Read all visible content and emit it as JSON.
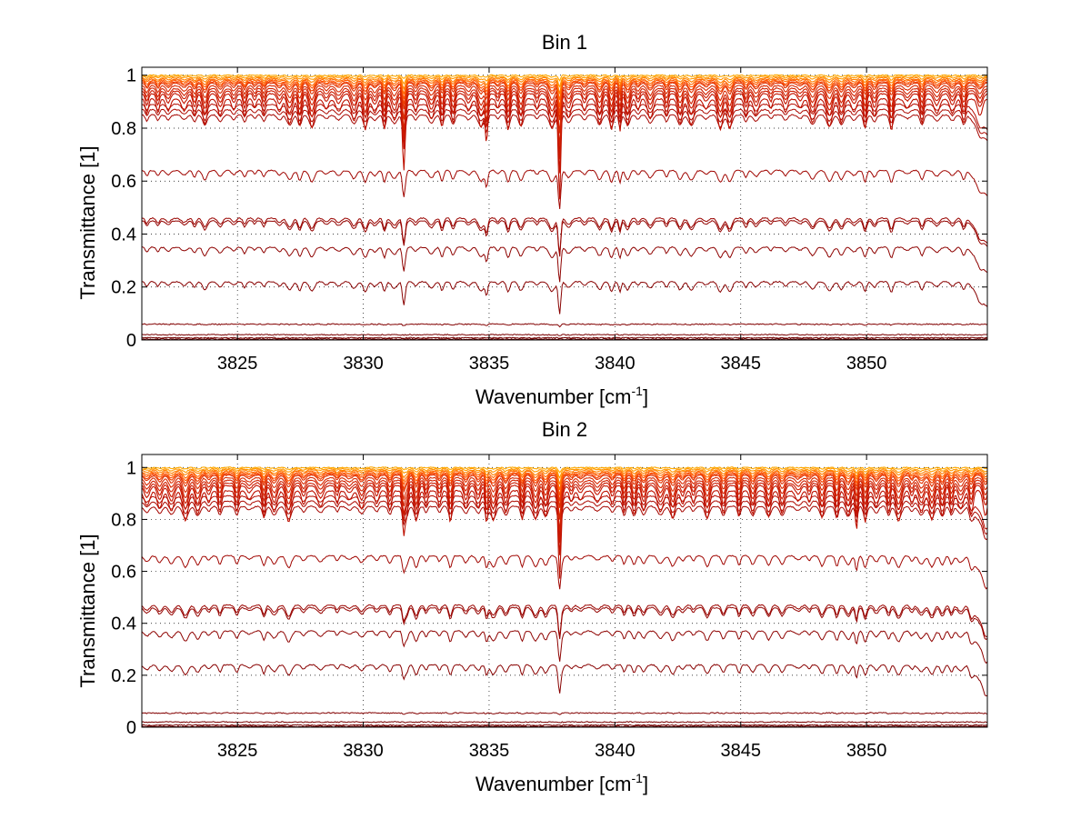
{
  "chart_data": [
    {
      "type": "line",
      "title": "Bin 1",
      "xlabel": "Wavenumber [cm",
      "xlabel_sup": "-1",
      "xlabel_end": "]",
      "ylabel": "Transmittance [1]",
      "xlim": [
        3821.2,
        3854.8
      ],
      "ylim": [
        0,
        1.03
      ],
      "xticks": [
        3825,
        3830,
        3835,
        3840,
        3845,
        3850
      ],
      "xtick_labels": [
        "3825",
        "3830",
        "3835",
        "3840",
        "3845",
        "3850"
      ],
      "yticks": [
        0,
        0.2,
        0.4,
        0.6,
        0.8,
        1
      ],
      "ytick_labels": [
        "0",
        "0.2",
        "0.4",
        "0.6",
        "0.8",
        "1"
      ],
      "grid": true,
      "grid_style": "dotted",
      "baseline_levels": [
        1.0,
        0.995,
        0.99,
        0.985,
        0.98,
        0.975,
        0.97,
        0.96,
        0.95,
        0.94,
        0.93,
        0.91,
        0.89,
        0.87,
        0.85,
        0.64,
        0.46,
        0.45,
        0.35,
        0.22,
        0.06,
        0.02,
        0.008,
        0.003
      ],
      "series_colors": [
        "#ffaa00",
        "#ff9900",
        "#ff8000",
        "#ff6a00",
        "#ff5500",
        "#f04000",
        "#e03000",
        "#d82800",
        "#d02000",
        "#cc1a00",
        "#c41500",
        "#bd1000",
        "#b50c00",
        "#ad0900",
        "#a60600",
        "#a00500",
        "#9a0400",
        "#940300",
        "#8e0200",
        "#880100",
        "#820000",
        "#7a0000",
        "#720000",
        "#6a0000"
      ],
      "strong_lines": [
        {
          "x": 3831.6,
          "depth": 0.12
        },
        {
          "x": 3834.9,
          "depth": 0.1
        },
        {
          "x": 3837.8,
          "depth": 0.25
        },
        {
          "x": 3840.2,
          "depth": 0.08
        }
      ],
      "line_spacing": 0.52
    },
    {
      "type": "line",
      "title": "Bin 2",
      "xlabel": "Wavenumber [cm",
      "xlabel_sup": "-1",
      "xlabel_end": "]",
      "ylabel": "Transmittance [1]",
      "xlim": [
        3821.2,
        3854.8
      ],
      "ylim": [
        0,
        1.05
      ],
      "xticks": [
        3825,
        3830,
        3835,
        3840,
        3845,
        3850
      ],
      "xtick_labels": [
        "3825",
        "3830",
        "3835",
        "3840",
        "3845",
        "3850"
      ],
      "yticks": [
        0,
        0.2,
        0.4,
        0.6,
        0.8,
        1
      ],
      "ytick_labels": [
        "0",
        "0.2",
        "0.4",
        "0.6",
        "0.8",
        "1"
      ],
      "grid": true,
      "grid_style": "dotted",
      "baseline_levels": [
        1.0,
        0.995,
        0.99,
        0.985,
        0.98,
        0.975,
        0.97,
        0.96,
        0.95,
        0.94,
        0.93,
        0.91,
        0.89,
        0.87,
        0.85,
        0.66,
        0.47,
        0.46,
        0.37,
        0.24,
        0.055,
        0.02,
        0.008,
        0.003
      ],
      "series_colors": [
        "#ffaa00",
        "#ff9900",
        "#ff8000",
        "#ff6a00",
        "#ff5500",
        "#f04000",
        "#e03000",
        "#d82800",
        "#d02000",
        "#cc1a00",
        "#c41500",
        "#bd1000",
        "#b50c00",
        "#ad0900",
        "#a60600",
        "#a00500",
        "#9a0400",
        "#940300",
        "#8e0200",
        "#880100",
        "#820000",
        "#7a0000",
        "#720000",
        "#6a0000"
      ],
      "strong_lines": [
        {
          "x": 3831.6,
          "depth": 0.1
        },
        {
          "x": 3834.9,
          "depth": 0.08
        },
        {
          "x": 3837.8,
          "depth": 0.18
        },
        {
          "x": 3849.6,
          "depth": 0.1
        }
      ],
      "line_spacing": 0.52
    }
  ]
}
